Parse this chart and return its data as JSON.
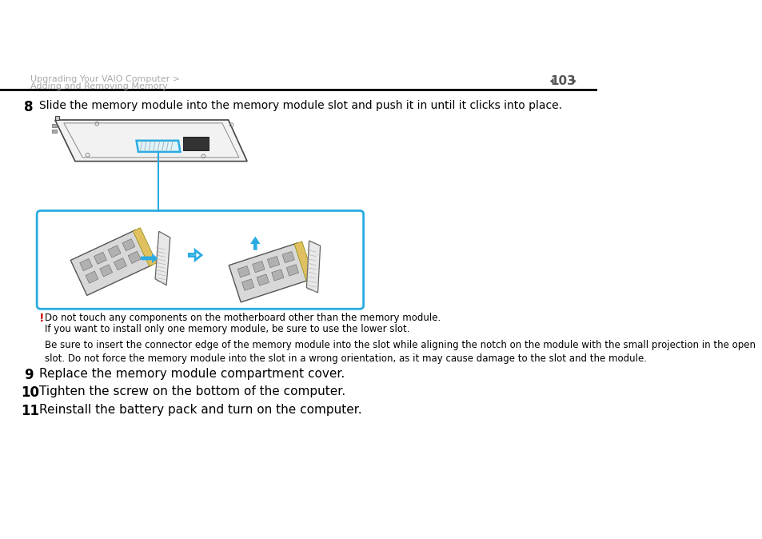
{
  "bg_color": "#ffffff",
  "header_text_line1": "Upgrading Your VAIO Computer >",
  "header_text_line2": "Adding and Removing Memory",
  "header_color": "#aaaaaa",
  "page_number": "103",
  "page_num_color": "#555555",
  "separator_color": "#000000",
  "step8_num": "8",
  "step8_text": "Slide the memory module into the memory module slot and push it in until it clicks into place.",
  "step8_text_color": "#000000",
  "step8_num_color": "#000000",
  "warning_exclamation": "!",
  "warning_exclamation_color": "#cc0000",
  "warning_line1": "Do not touch any components on the motherboard other than the memory module.",
  "warning_line2": "If you want to install only one memory module, be sure to use the lower slot.",
  "warning_line3": "Be sure to insert the connector edge of the memory module into the slot while aligning the notch on the module with the small projection in the open\nslot. Do not force the memory module into the slot in a wrong orientation, as it may cause damage to the slot and the module.",
  "warning_text_color": "#000000",
  "step9_num": "9",
  "step9_text": "Replace the memory module compartment cover.",
  "step10_num": "10",
  "step10_text": "Tighten the screw on the bottom of the computer.",
  "step11_num": "11",
  "step11_text": "Reinstall the battery pack and turn on the computer.",
  "steps_color": "#000000",
  "image_box_color": "#29abe2",
  "arrow_color": "#29abe2",
  "laptop_line_color": "#333333",
  "mem_module_color": "#888888"
}
